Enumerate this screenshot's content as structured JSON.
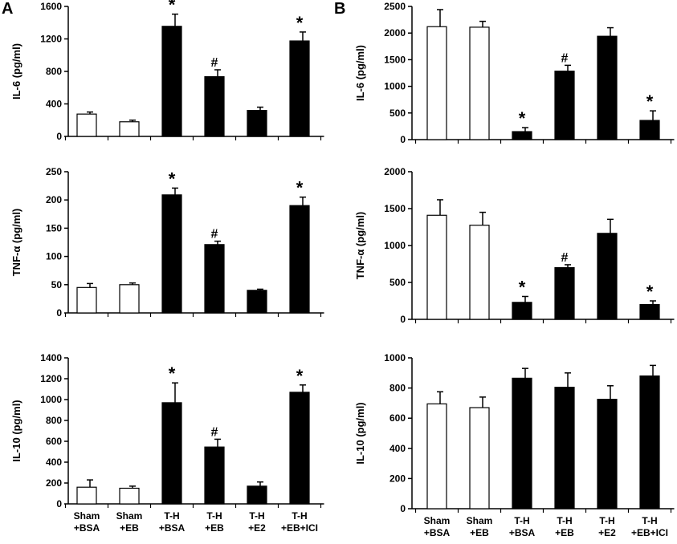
{
  "panel_labels": {
    "a": "A",
    "b": "B"
  },
  "colors": {
    "filled": "#000000",
    "open": "#ffffff",
    "stroke": "#000000"
  },
  "category_lines": [
    [
      "Sham",
      "+BSA"
    ],
    [
      "Sham",
      "+EB"
    ],
    [
      "T-H",
      "+BSA"
    ],
    [
      "T-H",
      "+EB"
    ],
    [
      "T-H",
      "+E2"
    ],
    [
      "T-H",
      "+EB+ICI"
    ]
  ],
  "chart_data": [
    {
      "panel": "A",
      "type": "bar",
      "categories": [
        "Sham +BSA",
        "Sham +EB",
        "T-H +BSA",
        "T-H +EB",
        "T-H +E2",
        "T-H +EB+ICI"
      ],
      "ylabel": "IL-6 (pg/ml)",
      "ylim": [
        0,
        1600
      ],
      "yticks": [
        0,
        400,
        800,
        1200,
        1600
      ],
      "values": [
        275,
        180,
        1355,
        735,
        320,
        1175
      ],
      "errors": [
        25,
        20,
        150,
        85,
        40,
        110
      ],
      "fill": [
        "open",
        "open",
        "filled",
        "filled",
        "filled",
        "filled"
      ],
      "markers": [
        "",
        "",
        "*",
        "#",
        "",
        "*"
      ]
    },
    {
      "panel": "A",
      "type": "bar",
      "categories": [
        "Sham +BSA",
        "Sham +EB",
        "T-H +BSA",
        "T-H +EB",
        "T-H +E2",
        "T-H +EB+ICI"
      ],
      "ylabel": "TNF-α (pg/ml)",
      "ylim": [
        0,
        250
      ],
      "yticks": [
        0,
        50,
        100,
        150,
        200,
        250
      ],
      "values": [
        45,
        50,
        209,
        121,
        40,
        190
      ],
      "errors": [
        7,
        3,
        12,
        6,
        2,
        15
      ],
      "fill": [
        "open",
        "open",
        "filled",
        "filled",
        "filled",
        "filled"
      ],
      "markers": [
        "",
        "",
        "*",
        "#",
        "",
        "*"
      ]
    },
    {
      "panel": "A",
      "type": "bar",
      "categories": [
        "Sham +BSA",
        "Sham +EB",
        "T-H +BSA",
        "T-H +EB",
        "T-H +E2",
        "T-H +EB+ICI"
      ],
      "ylabel": "IL-10 (pg/ml)",
      "ylim": [
        0,
        1400
      ],
      "yticks": [
        0,
        200,
        400,
        600,
        800,
        1000,
        1200,
        1400
      ],
      "values": [
        160,
        150,
        970,
        545,
        170,
        1070
      ],
      "errors": [
        70,
        20,
        190,
        75,
        40,
        70
      ],
      "fill": [
        "open",
        "open",
        "filled",
        "filled",
        "filled",
        "filled"
      ],
      "markers": [
        "",
        "",
        "*",
        "#",
        "",
        "*"
      ]
    },
    {
      "panel": "B",
      "type": "bar",
      "categories": [
        "Sham +BSA",
        "Sham +EB",
        "T-H +BSA",
        "T-H +EB",
        "T-H +E2",
        "T-H +EB+ICI"
      ],
      "ylabel": "IL-6 (pg/ml)",
      "ylim": [
        0,
        2500
      ],
      "yticks": [
        0,
        500,
        1000,
        1500,
        2000,
        2500
      ],
      "values": [
        2120,
        2110,
        150,
        1285,
        1940,
        360
      ],
      "errors": [
        320,
        110,
        75,
        110,
        160,
        180
      ],
      "fill": [
        "open",
        "open",
        "filled",
        "filled",
        "filled",
        "filled"
      ],
      "markers": [
        "",
        "",
        "*",
        "#",
        "",
        "*"
      ]
    },
    {
      "panel": "B",
      "type": "bar",
      "categories": [
        "Sham +BSA",
        "Sham +EB",
        "T-H +BSA",
        "T-H +EB",
        "T-H +E2",
        "T-H +EB+ICI"
      ],
      "ylabel": "TNF-α (pg/ml)",
      "ylim": [
        0,
        2000
      ],
      "yticks": [
        0,
        500,
        1000,
        1500,
        2000
      ],
      "values": [
        1410,
        1275,
        230,
        700,
        1165,
        200
      ],
      "errors": [
        210,
        175,
        80,
        40,
        190,
        50
      ],
      "fill": [
        "open",
        "open",
        "filled",
        "filled",
        "filled",
        "filled"
      ],
      "markers": [
        "",
        "",
        "*",
        "#",
        "",
        "*"
      ]
    },
    {
      "panel": "B",
      "type": "bar",
      "categories": [
        "Sham +BSA",
        "Sham +EB",
        "T-H +BSA",
        "T-H +EB",
        "T-H +E2",
        "T-H +EB+ICI"
      ],
      "ylabel": "IL-10 (pg/ml)",
      "ylim": [
        0,
        1000
      ],
      "yticks": [
        0,
        200,
        400,
        600,
        800,
        1000
      ],
      "values": [
        695,
        670,
        865,
        805,
        725,
        880
      ],
      "errors": [
        80,
        70,
        65,
        95,
        90,
        70
      ],
      "fill": [
        "open",
        "open",
        "filled",
        "filled",
        "filled",
        "filled"
      ],
      "markers": [
        "",
        "",
        "",
        "",
        "",
        ""
      ]
    }
  ]
}
